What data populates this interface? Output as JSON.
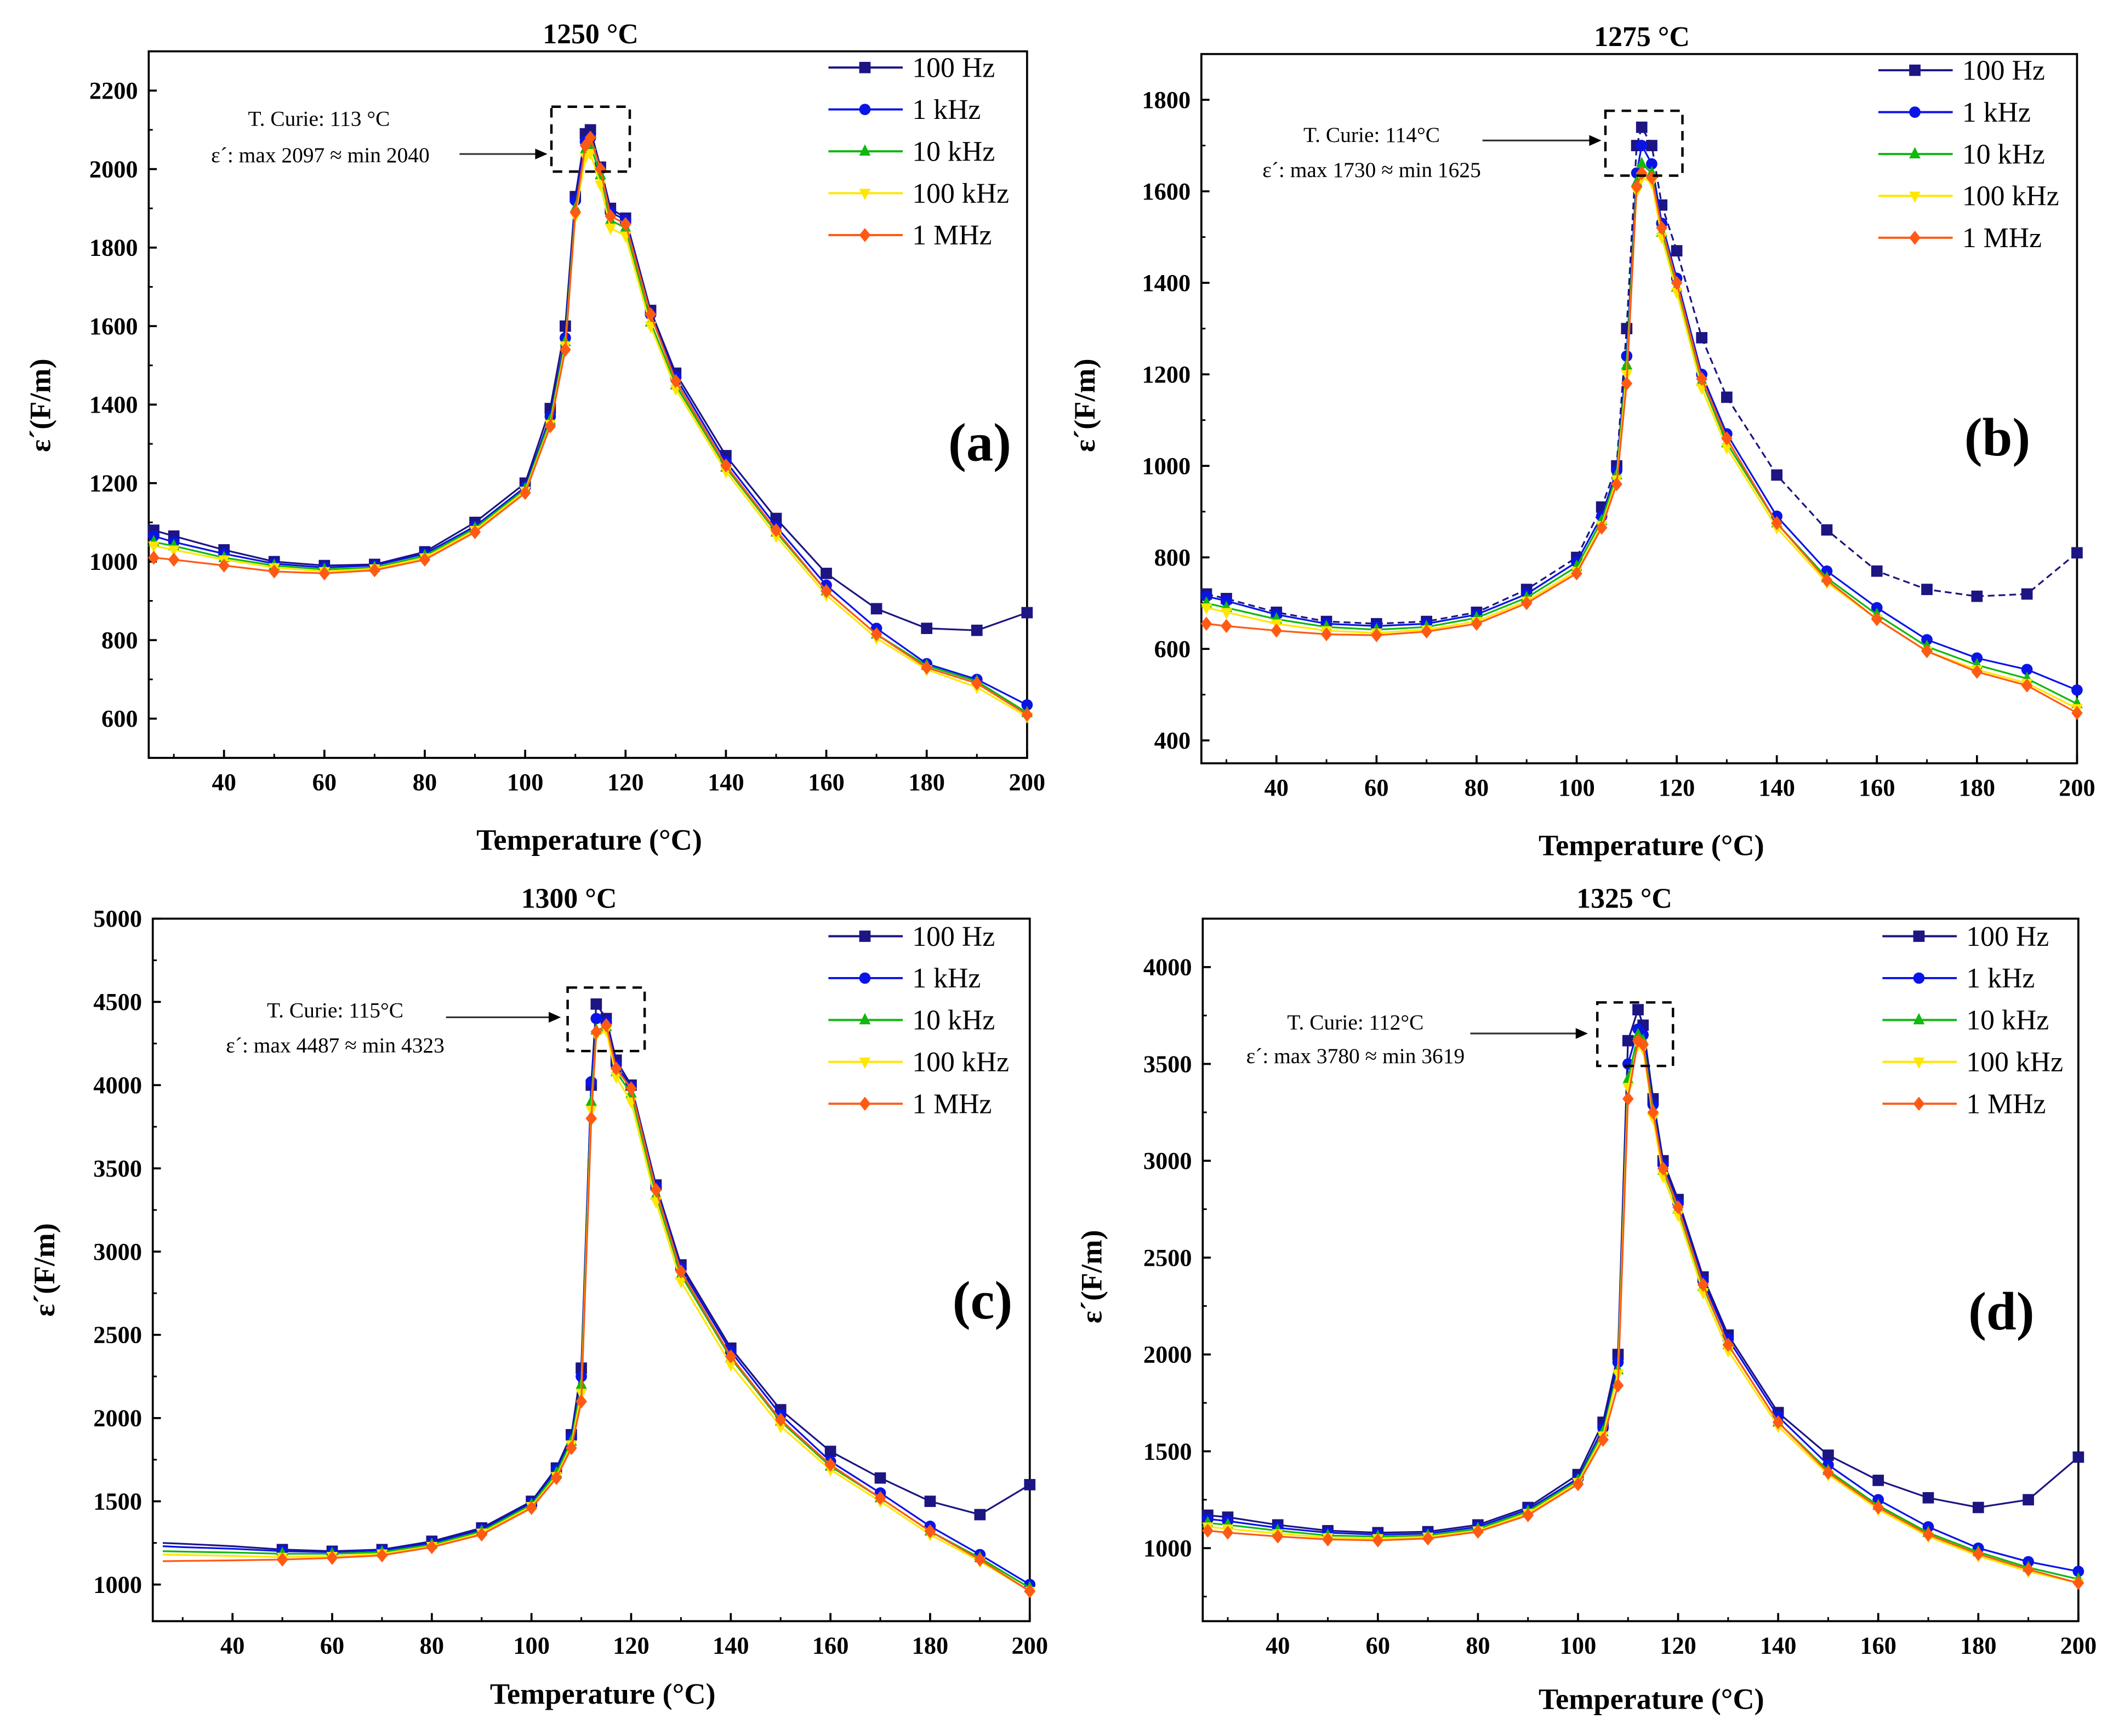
{
  "chart_data": [
    {
      "type": "line",
      "title": "1250 °C",
      "panel_label": "(a)",
      "xlabel": "Temperature (°C)",
      "ylabel": "ε´(F/m)",
      "xlim": [
        25,
        200
      ],
      "ylim": [
        500,
        2300
      ],
      "xticks": [
        40,
        60,
        80,
        100,
        120,
        140,
        160,
        180,
        200
      ],
      "yticks": [
        600,
        800,
        1000,
        1200,
        1400,
        1600,
        1800,
        2000,
        2200
      ],
      "annotation": [
        "T. Curie: 113 °C",
        "ε´: max 2097 ≈ min 2040"
      ],
      "legend_position": "top-right",
      "x": [
        26,
        30,
        40,
        50,
        60,
        70,
        80,
        90,
        100,
        105,
        108,
        110,
        112,
        113,
        115,
        117,
        120,
        125,
        130,
        140,
        150,
        160,
        170,
        180,
        190,
        200
      ],
      "series": [
        {
          "name": "100 Hz",
          "color": "#1c1582",
          "marker": "square",
          "values": [
            1080,
            1065,
            1030,
            1000,
            990,
            993,
            1025,
            1100,
            1200,
            1390,
            1600,
            1930,
            2090,
            2100,
            2005,
            1900,
            1875,
            1640,
            1480,
            1270,
            1110,
            970,
            880,
            830,
            825,
            870
          ]
        },
        {
          "name": "1 kHz",
          "color": "#0a14e6",
          "marker": "circle",
          "values": [
            1065,
            1050,
            1020,
            995,
            985,
            990,
            1020,
            1090,
            1190,
            1370,
            1570,
            1920,
            2070,
            2080,
            2000,
            1890,
            1870,
            1630,
            1470,
            1255,
            1090,
            940,
            830,
            740,
            700,
            635
          ]
        },
        {
          "name": "10 kHz",
          "color": "#10b810",
          "marker": "triangle-up",
          "values": [
            1050,
            1040,
            1010,
            990,
            980,
            985,
            1015,
            1085,
            1185,
            1360,
            1560,
            1900,
            2050,
            2060,
            1985,
            1870,
            1850,
            1610,
            1450,
            1240,
            1075,
            925,
            815,
            735,
            695,
            615
          ]
        },
        {
          "name": "100 kHz",
          "color": "#ffe600",
          "marker": "triangle-down",
          "values": [
            1040,
            1030,
            1005,
            985,
            975,
            982,
            1010,
            1080,
            1180,
            1350,
            1550,
            1880,
            2030,
            2040,
            1960,
            1850,
            1830,
            1600,
            1440,
            1230,
            1065,
            915,
            805,
            725,
            680,
            605
          ]
        },
        {
          "name": "1 MHz",
          "color": "#ff5a14",
          "marker": "diamond",
          "values": [
            1010,
            1005,
            990,
            975,
            970,
            978,
            1005,
            1075,
            1175,
            1345,
            1540,
            1890,
            2060,
            2080,
            2000,
            1880,
            1860,
            1630,
            1460,
            1245,
            1080,
            925,
            815,
            730,
            690,
            610
          ]
        }
      ]
    },
    {
      "type": "line",
      "title": "1275 °C",
      "panel_label": "(b)",
      "xlabel": "Temperature (°C)",
      "ylabel": "ε´(F/m)",
      "xlim": [
        25,
        200
      ],
      "ylim": [
        350,
        1900
      ],
      "xticks": [
        40,
        60,
        80,
        100,
        120,
        140,
        160,
        180,
        200
      ],
      "yticks": [
        400,
        600,
        800,
        1000,
        1200,
        1400,
        1600,
        1800
      ],
      "annotation": [
        "T. Curie: 114°C",
        "ε´: max 1730 ≈ min 1625"
      ],
      "legend_position": "top-right",
      "x": [
        26,
        30,
        40,
        50,
        60,
        70,
        80,
        90,
        100,
        105,
        108,
        110,
        112,
        113,
        115,
        117,
        120,
        125,
        130,
        140,
        150,
        160,
        170,
        180,
        190,
        200
      ],
      "series": [
        {
          "name": "100 Hz",
          "color": "#1c1582",
          "marker": "square",
          "values": [
            720,
            710,
            680,
            660,
            655,
            660,
            680,
            730,
            800,
            910,
            1000,
            1300,
            1700,
            1740,
            1700,
            1570,
            1470,
            1280,
            1150,
            980,
            860,
            770,
            730,
            715,
            720,
            810
          ]
        },
        {
          "name": "1 kHz",
          "color": "#0a14e6",
          "marker": "circle",
          "values": [
            715,
            705,
            675,
            655,
            650,
            655,
            675,
            720,
            790,
            890,
            990,
            1240,
            1640,
            1700,
            1660,
            1530,
            1410,
            1200,
            1070,
            890,
            770,
            690,
            620,
            580,
            555,
            510
          ]
        },
        {
          "name": "10 kHz",
          "color": "#10b810",
          "marker": "triangle-up",
          "values": [
            700,
            690,
            665,
            648,
            642,
            648,
            668,
            712,
            780,
            880,
            980,
            1220,
            1620,
            1660,
            1640,
            1510,
            1390,
            1185,
            1050,
            875,
            755,
            675,
            605,
            565,
            535,
            480
          ]
        },
        {
          "name": "100 kHz",
          "color": "#ffe600",
          "marker": "triangle-down",
          "values": [
            690,
            680,
            655,
            640,
            635,
            642,
            660,
            705,
            770,
            870,
            970,
            1200,
            1600,
            1630,
            1620,
            1500,
            1380,
            1170,
            1040,
            865,
            745,
            665,
            595,
            555,
            525,
            470
          ]
        },
        {
          "name": "1 MHz",
          "color": "#ff5a14",
          "marker": "diamond",
          "values": [
            655,
            650,
            640,
            632,
            630,
            638,
            655,
            700,
            765,
            865,
            960,
            1180,
            1610,
            1640,
            1630,
            1520,
            1400,
            1190,
            1060,
            875,
            750,
            665,
            595,
            550,
            520,
            460
          ]
        }
      ]
    },
    {
      "type": "line",
      "title": "1300 °C",
      "panel_label": "(c)",
      "xlabel": "Temperature (°C)",
      "ylabel": "ε´(F/m)",
      "xlim": [
        24,
        200
      ],
      "ylim": [
        780,
        5000
      ],
      "xticks": [
        40,
        60,
        80,
        100,
        120,
        140,
        160,
        180,
        200
      ],
      "yticks": [
        1000,
        1500,
        2000,
        2500,
        3000,
        3500,
        4000,
        4500,
        5000
      ],
      "annotation": [
        "T. Curie: 115°C",
        "ε´: max 4487 ≈ min 4323"
      ],
      "legend_position": "top-right",
      "x": [
        26,
        30,
        40,
        50,
        60,
        70,
        80,
        90,
        100,
        105,
        108,
        110,
        112,
        113,
        115,
        117,
        120,
        125,
        130,
        140,
        150,
        160,
        170,
        180,
        190,
        200
      ],
      "series": [
        {
          "name": "100 Hz",
          "color": "#1c1582",
          "marker": "square",
          "values": [
            1250,
            1245,
            1230,
            1210,
            1200,
            1210,
            1260,
            1340,
            1500,
            1700,
            1900,
            2300,
            4000,
            4487,
            4400,
            4150,
            4000,
            3400,
            2920,
            2420,
            2050,
            1800,
            1640,
            1500,
            1420,
            1600
          ]
        },
        {
          "name": "1 kHz",
          "color": "#0a14e6",
          "marker": "circle",
          "values": [
            1230,
            1225,
            1215,
            1200,
            1195,
            1205,
            1250,
            1330,
            1490,
            1690,
            1880,
            2250,
            4020,
            4400,
            4380,
            4120,
            3990,
            3390,
            2900,
            2400,
            2020,
            1740,
            1550,
            1350,
            1180,
            1000
          ]
        },
        {
          "name": "10 kHz",
          "color": "#10b810",
          "marker": "triangle-up",
          "values": [
            1200,
            1198,
            1192,
            1185,
            1185,
            1195,
            1240,
            1320,
            1480,
            1670,
            1860,
            2200,
            3900,
            4330,
            4350,
            4080,
            3950,
            3340,
            2860,
            2360,
            1980,
            1710,
            1520,
            1320,
            1160,
            980
          ]
        },
        {
          "name": "100 kHz",
          "color": "#ffe600",
          "marker": "triangle-down",
          "values": [
            1180,
            1178,
            1172,
            1165,
            1170,
            1185,
            1230,
            1310,
            1470,
            1650,
            1840,
            2150,
            3850,
            4300,
            4330,
            4050,
            3900,
            3300,
            2820,
            2320,
            1950,
            1690,
            1500,
            1300,
            1140,
            960
          ]
        },
        {
          "name": "1 MHz",
          "color": "#ff5a14",
          "marker": "diamond",
          "values": [
            1140,
            1142,
            1145,
            1150,
            1160,
            1175,
            1225,
            1300,
            1460,
            1640,
            1820,
            2100,
            3800,
            4320,
            4360,
            4100,
            3980,
            3370,
            2880,
            2370,
            1990,
            1720,
            1520,
            1320,
            1150,
            960
          ]
        }
      ]
    },
    {
      "type": "line",
      "title": "1325 °C",
      "panel_label": "(d)",
      "xlabel": "Temperature (°C)",
      "ylabel": "ε´(F/m)",
      "xlim": [
        25,
        200
      ],
      "ylim": [
        623,
        4250
      ],
      "xticks": [
        40,
        60,
        80,
        100,
        120,
        140,
        160,
        180,
        200
      ],
      "yticks": [
        1000,
        1500,
        2000,
        2500,
        3000,
        3500,
        4000
      ],
      "annotation": [
        "T. Curie: 112°C",
        "ε´: max 3780 ≈ min 3619"
      ],
      "legend_position": "top-right",
      "x": [
        26,
        30,
        40,
        50,
        60,
        70,
        80,
        90,
        100,
        105,
        108,
        110,
        112,
        113,
        115,
        117,
        120,
        125,
        130,
        140,
        150,
        160,
        170,
        180,
        190,
        200
      ],
      "series": [
        {
          "name": "100 Hz",
          "color": "#1c1582",
          "marker": "square",
          "values": [
            1170,
            1160,
            1120,
            1090,
            1080,
            1085,
            1120,
            1210,
            1380,
            1650,
            2000,
            3620,
            3780,
            3700,
            3320,
            3000,
            2800,
            2400,
            2100,
            1700,
            1480,
            1350,
            1260,
            1210,
            1250,
            1470
          ]
        },
        {
          "name": "1 kHz",
          "color": "#0a14e6",
          "marker": "circle",
          "values": [
            1150,
            1140,
            1105,
            1080,
            1070,
            1075,
            1110,
            1200,
            1360,
            1620,
            1960,
            3500,
            3680,
            3650,
            3290,
            2980,
            2780,
            2380,
            2080,
            1680,
            1430,
            1250,
            1110,
            1000,
            930,
            880
          ]
        },
        {
          "name": "10 kHz",
          "color": "#10b810",
          "marker": "triangle-up",
          "values": [
            1130,
            1120,
            1090,
            1065,
            1060,
            1065,
            1100,
            1190,
            1350,
            1600,
            1920,
            3420,
            3650,
            3620,
            3260,
            2950,
            2750,
            2350,
            2050,
            1650,
            1400,
            1220,
            1080,
            980,
            900,
            840
          ]
        },
        {
          "name": "100 kHz",
          "color": "#ffe600",
          "marker": "triangle-down",
          "values": [
            1110,
            1100,
            1075,
            1055,
            1050,
            1058,
            1090,
            1180,
            1340,
            1580,
            1900,
            3380,
            3600,
            3580,
            3220,
            2920,
            2720,
            2320,
            2020,
            1630,
            1380,
            1200,
            1060,
            960,
            880,
            820
          ]
        },
        {
          "name": "1 MHz",
          "color": "#ff5a14",
          "marker": "diamond",
          "values": [
            1090,
            1080,
            1060,
            1045,
            1040,
            1050,
            1085,
            1170,
            1330,
            1560,
            1840,
            3320,
            3620,
            3600,
            3250,
            2960,
            2760,
            2360,
            2050,
            1650,
            1390,
            1210,
            1070,
            970,
            890,
            820
          ]
        }
      ]
    }
  ]
}
